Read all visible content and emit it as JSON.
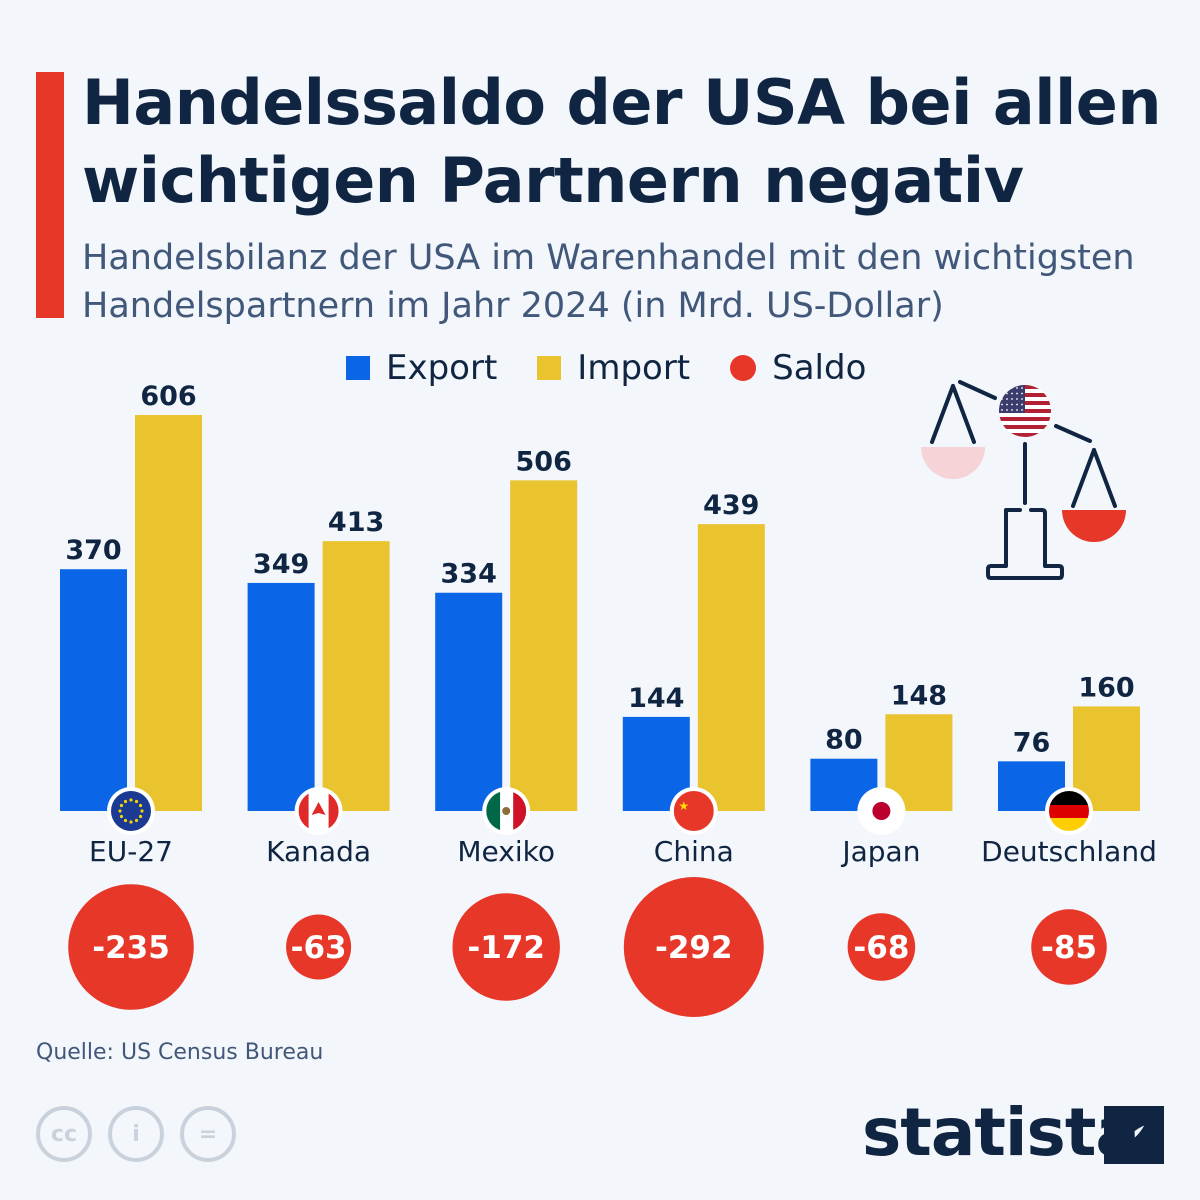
{
  "title": "Handelssaldo der USA bei allen wichtigen Partnern negativ",
  "subtitle": "Handelsbilanz der USA im Warenhandel mit den wichtigsten Handelspartnern im Jahr 2024 (in Mrd. US-Dollar)",
  "source": "Quelle: US Census Bureau",
  "brand": "statista",
  "license_icons": [
    "cc-icon",
    "attribution-icon",
    "no-derivatives-icon"
  ],
  "colors": {
    "export": "#0a66e6",
    "import": "#e9c42f",
    "saldo": "#e73729",
    "accent": "#e73729",
    "text": "#0f2542"
  },
  "chart_data": {
    "type": "bar",
    "categories": [
      "EU-27",
      "Kanada",
      "Mexiko",
      "China",
      "Japan",
      "Deutschland"
    ],
    "flags": [
      "eu-flag-icon",
      "canada-flag-icon",
      "mexico-flag-icon",
      "china-flag-icon",
      "japan-flag-icon",
      "germany-flag-icon"
    ],
    "series": [
      {
        "name": "Export",
        "values": [
          370,
          349,
          334,
          144,
          80,
          76
        ]
      },
      {
        "name": "Import",
        "values": [
          606,
          413,
          506,
          439,
          148,
          160
        ]
      },
      {
        "name": "Saldo",
        "values": [
          -235,
          -63,
          -172,
          -292,
          -68,
          -85
        ]
      }
    ],
    "ylim": [
      0,
      606
    ],
    "grid": false,
    "legend": "top-center",
    "saldo_display": "bubbles sized by absolute value"
  }
}
